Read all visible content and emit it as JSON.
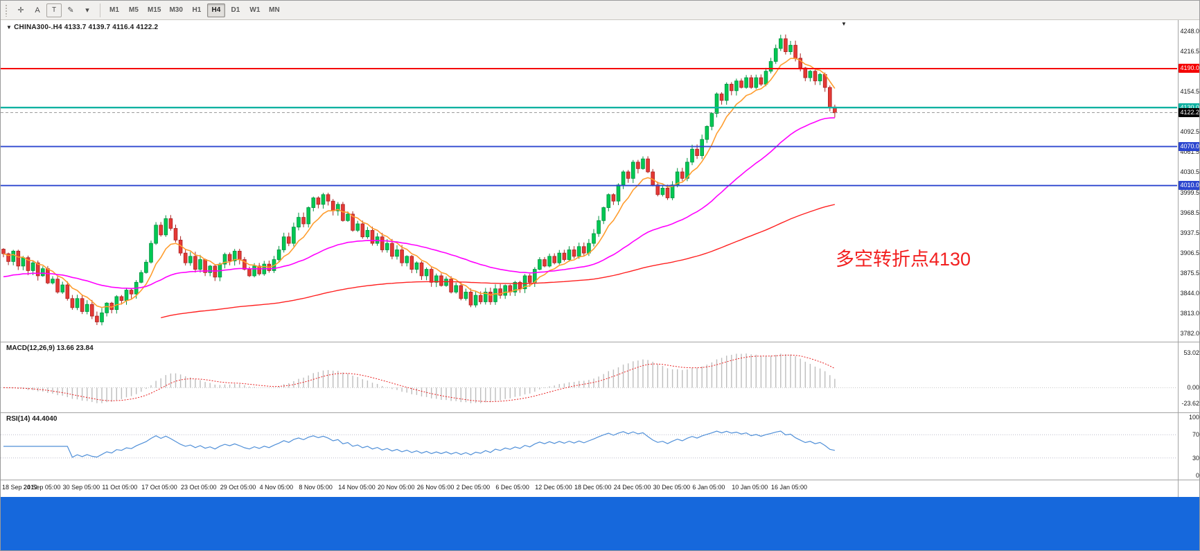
{
  "toolbar": {
    "tools": [
      {
        "name": "crosshair-icon",
        "glyph": "✛",
        "boxed": false
      },
      {
        "name": "arrow-label-icon",
        "glyph": "A",
        "boxed": false
      },
      {
        "name": "text-tool-icon",
        "glyph": "T",
        "boxed": true
      },
      {
        "name": "draw-tools-icon",
        "glyph": "✎",
        "boxed": false
      },
      {
        "name": "draw-tools-caret-icon",
        "glyph": "▾",
        "boxed": false
      }
    ],
    "timeframes": [
      {
        "label": "M1",
        "active": false
      },
      {
        "label": "M5",
        "active": false
      },
      {
        "label": "M15",
        "active": false
      },
      {
        "label": "M30",
        "active": false
      },
      {
        "label": "H1",
        "active": false
      },
      {
        "label": "H4",
        "active": true
      },
      {
        "label": "D1",
        "active": false
      },
      {
        "label": "W1",
        "active": false
      },
      {
        "label": "MN",
        "active": false
      }
    ]
  },
  "chart": {
    "marker": "▼",
    "symbol_title": "CHINA300-.H4",
    "ohlc_text": "4133.7 4139.7 4116.4 4122.2",
    "scroll_marker": "▼"
  },
  "annotation": {
    "text": "多空转折点4130",
    "color": "#f21f1f"
  },
  "price_axis": {
    "ticks": [
      {
        "text": "4248.0",
        "value": 4248.0
      },
      {
        "text": "4216.5",
        "value": 4216.5
      },
      {
        "text": "4154.5",
        "value": 4154.5
      },
      {
        "text": "4092.5",
        "value": 4092.5
      },
      {
        "text": "4061.5",
        "value": 4061.5
      },
      {
        "text": "4030.5",
        "value": 4030.5
      },
      {
        "text": "3999.5",
        "value": 3999.5
      },
      {
        "text": "3968.5",
        "value": 3968.5
      },
      {
        "text": "3937.5",
        "value": 3937.5
      },
      {
        "text": "3906.5",
        "value": 3906.5
      },
      {
        "text": "3875.5",
        "value": 3875.5
      },
      {
        "text": "3844.0",
        "value": 3844.0
      },
      {
        "text": "3813.0",
        "value": 3813.0
      },
      {
        "text": "3782.0",
        "value": 3782.0
      }
    ],
    "level_labels": [
      {
        "text": "4190.0",
        "value": 4190.0,
        "bg": "#f40000",
        "fg": "#ffffff"
      },
      {
        "text": "4130.0",
        "value": 4130.0,
        "bg": "#10b2a2",
        "fg": "#ffffff"
      },
      {
        "text": "4122.2",
        "value": 4122.2,
        "bg": "#000000",
        "fg": "#ffffff"
      },
      {
        "text": "4070.0",
        "value": 4070.0,
        "bg": "#2c46cf",
        "fg": "#ffffff"
      },
      {
        "text": "4010.0",
        "value": 4010.0,
        "bg": "#2c46cf",
        "fg": "#ffffff"
      }
    ]
  },
  "levels": [
    {
      "value": 4190.0,
      "color": "#f40000",
      "width": 2
    },
    {
      "value": 4130.0,
      "color": "#10b2a2",
      "width": 2.4
    },
    {
      "value": 4070.0,
      "color": "#2c46cf",
      "width": 1.8
    },
    {
      "value": 4010.0,
      "color": "#2c46cf",
      "width": 1.8
    }
  ],
  "macd": {
    "title": "MACD(12,26,9) 13.66 23.84",
    "axis": [
      {
        "text": "53.02",
        "value": 53.02
      },
      {
        "text": "0.00",
        "value": 0
      },
      {
        "text": "-23.62",
        "value": -23.62
      }
    ]
  },
  "rsi": {
    "title": "RSI(14) 44.4040",
    "axis": [
      {
        "text": "100",
        "value": 100
      },
      {
        "text": "70",
        "value": 70
      },
      {
        "text": "30",
        "value": 30
      },
      {
        "text": "0",
        "value": 0
      }
    ],
    "levels": [
      70,
      30
    ]
  },
  "date_axis": [
    {
      "label": "18 Sep 2019",
      "i": 0
    },
    {
      "label": "24 Sep 05:00",
      "i": 8
    },
    {
      "label": "30 Sep 05:00",
      "i": 16
    },
    {
      "label": "11 Oct 05:00",
      "i": 24
    },
    {
      "label": "17 Oct 05:00",
      "i": 32
    },
    {
      "label": "23 Oct 05:00",
      "i": 40
    },
    {
      "label": "29 Oct 05:00",
      "i": 48
    },
    {
      "label": "4 Nov 05:00",
      "i": 56
    },
    {
      "label": "8 Nov 05:00",
      "i": 64
    },
    {
      "label": "14 Nov 05:00",
      "i": 72
    },
    {
      "label": "20 Nov 05:00",
      "i": 80
    },
    {
      "label": "26 Nov 05:00",
      "i": 88
    },
    {
      "label": "2 Dec 05:00",
      "i": 96
    },
    {
      "label": "6 Dec 05:00",
      "i": 104
    },
    {
      "label": "12 Dec 05:00",
      "i": 112
    },
    {
      "label": "18 Dec 05:00",
      "i": 120
    },
    {
      "label": "24 Dec 05:00",
      "i": 128
    },
    {
      "label": "30 Dec 05:00",
      "i": 136
    },
    {
      "label": "6 Jan 05:00",
      "i": 144
    },
    {
      "label": "10 Jan 05:00",
      "i": 152
    },
    {
      "label": "16 Jan 05:00",
      "i": 160
    }
  ],
  "chart_data": {
    "type": "candlestick",
    "symbol": "CHINA300-.H4",
    "timeframe": "H4",
    "price_range": [
      3776,
      4254
    ],
    "current_price": 4122.2,
    "first_open": 3912,
    "closes": [
      3905,
      3893,
      3909,
      3886,
      3899,
      3879,
      3891,
      3871,
      3882,
      3860,
      3866,
      3846,
      3857,
      3836,
      3822,
      3836,
      3816,
      3827,
      3809,
      3800,
      3814,
      3829,
      3819,
      3839,
      3833,
      3849,
      3843,
      3861,
      3876,
      3892,
      3921,
      3949,
      3934,
      3959,
      3944,
      3926,
      3906,
      3891,
      3901,
      3881,
      3896,
      3876,
      3886,
      3869,
      3889,
      3904,
      3894,
      3909,
      3896,
      3881,
      3871,
      3886,
      3874,
      3889,
      3879,
      3896,
      3911,
      3931,
      3921,
      3946,
      3961,
      3951,
      3976,
      3991,
      3981,
      3996,
      3986,
      3971,
      3981,
      3956,
      3966,
      3941,
      3951,
      3931,
      3941,
      3921,
      3931,
      3911,
      3921,
      3901,
      3911,
      3891,
      3901,
      3881,
      3891,
      3871,
      3881,
      3861,
      3871,
      3856,
      3866,
      3846,
      3856,
      3836,
      3846,
      3826,
      3841,
      3831,
      3846,
      3831,
      3851,
      3841,
      3856,
      3846,
      3861,
      3851,
      3871,
      3861,
      3881,
      3896,
      3886,
      3901,
      3891,
      3906,
      3896,
      3911,
      3901,
      3916,
      3906,
      3921,
      3936,
      3956,
      3976,
      3996,
      3986,
      4011,
      4031,
      4021,
      4046,
      4036,
      4051,
      4031,
      4011,
      3996,
      4006,
      3991,
      4011,
      4031,
      4021,
      4046,
      4066,
      4056,
      4081,
      4101,
      4121,
      4151,
      4141,
      4166,
      4156,
      4171,
      4161,
      4176,
      4161,
      4176,
      4166,
      4186,
      4201,
      4221,
      4236,
      4216,
      4226,
      4206,
      4191,
      4176,
      4186,
      4171,
      4181,
      4161,
      4131,
      4122
    ],
    "ma": [
      {
        "name": "ma-fast-orange",
        "color": "#ff9d2e",
        "period": 8,
        "seed": 3905,
        "draw_from": 0,
        "width": 1.6
      },
      {
        "name": "ma-mid-magenta",
        "color": "#ff00ff",
        "period": 45,
        "seed": 3868,
        "draw_from": 0,
        "width": 1.6
      },
      {
        "name": "ma-slow-red",
        "color": "#ff2020",
        "period": 160,
        "seed": 3778,
        "draw_from": 32,
        "width": 1.4
      }
    ],
    "macd_params": [
      12,
      26,
      9
    ],
    "rsi_period": 14
  },
  "colors": {
    "candle_up": "#00C853",
    "candle_up_edge": "#00913f",
    "candle_down": "#E53935",
    "candle_down_edge": "#a92222",
    "macd_hist": "#bdbdbd",
    "macd_signal": "#e81f1f",
    "rsi_line": "#4f8fd8",
    "bottom_bar": "#1668dc"
  }
}
